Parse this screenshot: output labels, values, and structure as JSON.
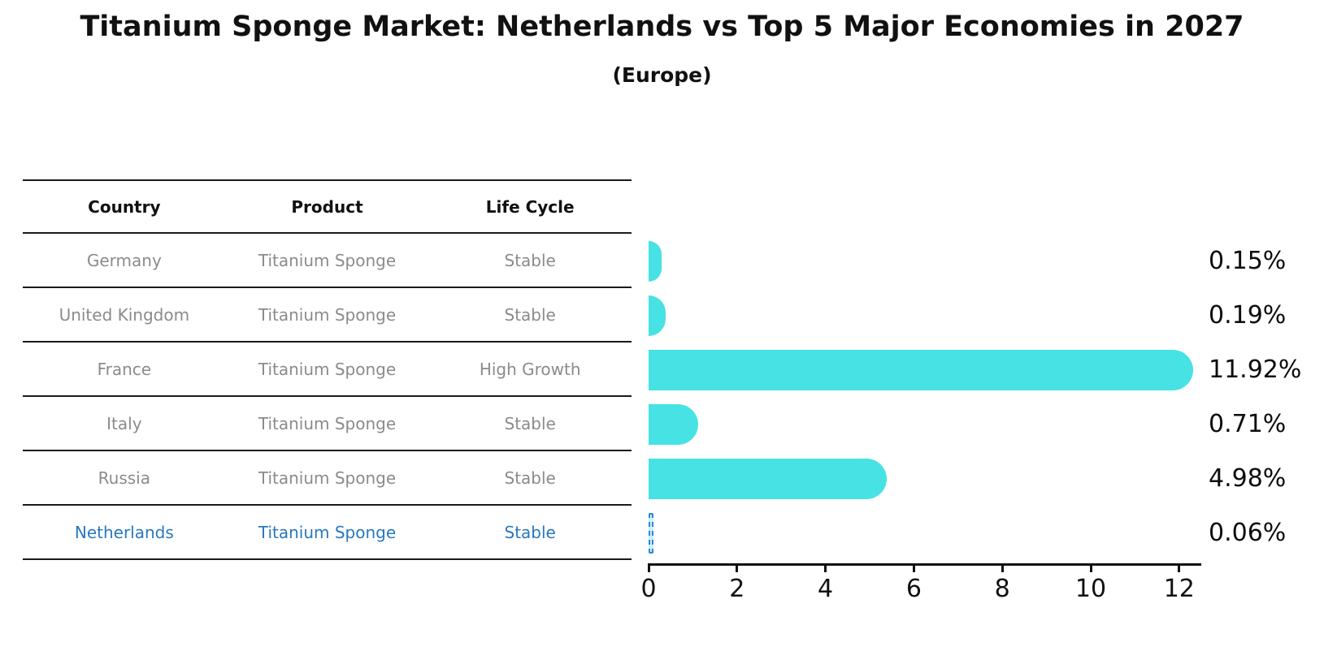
{
  "title": "Titanium Sponge Market: Netherlands vs Top 5 Major Economies in 2027",
  "subtitle": "(Europe)",
  "table": {
    "headers": [
      "Country",
      "Product",
      "Life Cycle"
    ],
    "rows": [
      {
        "country": "Germany",
        "product": "Titanium Sponge",
        "life_cycle": "Stable",
        "highlight": false
      },
      {
        "country": "United Kingdom",
        "product": "Titanium Sponge",
        "life_cycle": "Stable",
        "highlight": false
      },
      {
        "country": "France",
        "product": "Titanium Sponge",
        "life_cycle": "High Growth",
        "highlight": false
      },
      {
        "country": "Italy",
        "product": "Titanium Sponge",
        "life_cycle": "Stable",
        "highlight": false
      },
      {
        "country": "Russia",
        "product": "Titanium Sponge",
        "life_cycle": "Stable",
        "highlight": true
      }
    ],
    "highlight_row": {
      "country": "Netherlands",
      "product": "Titanium Sponge",
      "life_cycle": "Stable"
    }
  },
  "chart_data": {
    "type": "bar",
    "orientation": "horizontal",
    "title": "Titanium Sponge Market: Netherlands vs Top 5 Major Economies in 2027",
    "subtitle": "(Europe)",
    "categories": [
      "Germany",
      "United Kingdom",
      "France",
      "Italy",
      "Russia",
      "Netherlands"
    ],
    "values": [
      0.15,
      0.19,
      11.92,
      0.71,
      4.98,
      0.06
    ],
    "value_labels": [
      "0.15%",
      "0.19%",
      "11.92%",
      "0.71%",
      "4.98%",
      "0.06%"
    ],
    "x_ticks": [
      0,
      2,
      4,
      6,
      8,
      10,
      12
    ],
    "xlim": [
      0,
      12.5
    ],
    "grid": false,
    "legend": false,
    "bar_color": "#47e2e4",
    "highlight_index": 5,
    "highlight_style": "dashed-outline",
    "highlight_outline_color": "#2e86d4",
    "highlight_text_color": "#2878be"
  }
}
